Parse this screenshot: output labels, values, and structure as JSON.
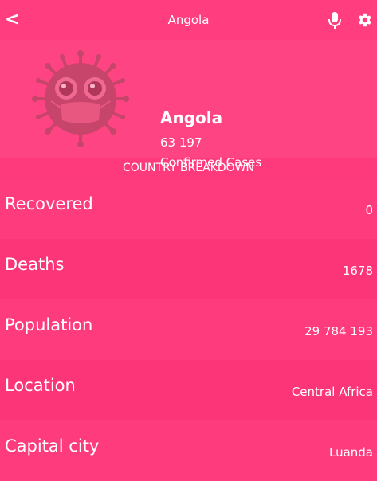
{
  "header": {
    "back_label": "<",
    "title": "Angola",
    "mic_icon": "microphone-icon",
    "settings_icon": "gear-icon"
  },
  "summary": {
    "country": "Angola",
    "confirmed_count": "63 197",
    "confirmed_label": "Confirmed Cases",
    "illustration": "virus-mascot-icon"
  },
  "section_title": "COUNTRY BREAKDOWN",
  "rows": [
    {
      "label": "Recovered",
      "value": "0"
    },
    {
      "label": "Deaths",
      "value": "1678"
    },
    {
      "label": "Population",
      "value": "29 784 193"
    },
    {
      "label": "Location",
      "value": "Central Africa"
    },
    {
      "label": "Capital city",
      "value": "Luanda"
    }
  ],
  "colors": {
    "background": "#ff3d7f",
    "virus_body": "#c7456a",
    "mask": "#e8577f"
  }
}
